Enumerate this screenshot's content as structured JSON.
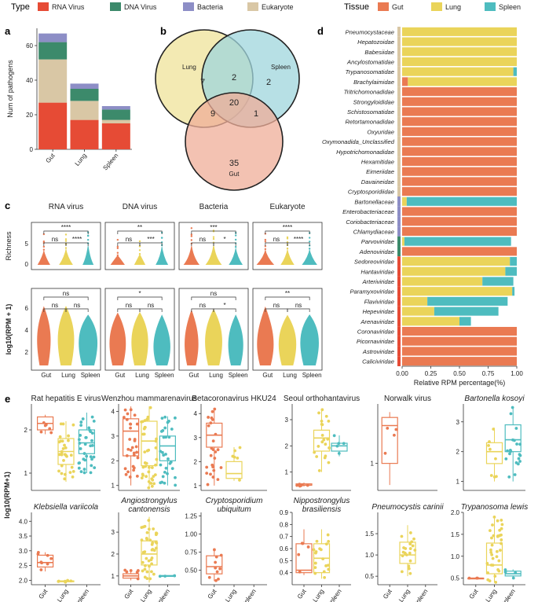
{
  "colors": {
    "rna": "#e64b35",
    "dna": "#3c8a6b",
    "bacteria": "#8d8ec6",
    "eukaryote": "#d9c7a5",
    "gut": "#ea7a52",
    "lung": "#ead45a",
    "spleen": "#4ebcbf",
    "venn_lung": "#efe39a",
    "venn_spleen": "#9fd5dc",
    "venn_gut": "#efad98"
  },
  "legend": {
    "type_title": "Type",
    "type_items": [
      {
        "key": "rna",
        "label": "RNA Virus"
      },
      {
        "key": "dna",
        "label": "DNA Virus"
      },
      {
        "key": "bacteria",
        "label": "Bacteria"
      },
      {
        "key": "eukaryote",
        "label": "Eukaryote"
      }
    ],
    "tissue_title": "Tissue",
    "tissue_items": [
      {
        "key": "gut",
        "label": "Gut"
      },
      {
        "key": "lung",
        "label": "Lung"
      },
      {
        "key": "spleen",
        "label": "Spleen"
      }
    ]
  },
  "panel_labels": {
    "a": "a",
    "b": "b",
    "c": "c",
    "d": "d",
    "e": "e"
  },
  "chart_data": [
    {
      "id": "panel-a",
      "type": "bar",
      "stacked": true,
      "categories": [
        "Gut",
        "Lung",
        "Spleen"
      ],
      "series": [
        {
          "name": "RNA Virus",
          "key": "rna",
          "values": [
            27,
            17,
            15
          ]
        },
        {
          "name": "Eukaryote",
          "key": "eukaryote",
          "values": [
            25,
            11,
            2
          ]
        },
        {
          "name": "DNA Virus",
          "key": "dna",
          "values": [
            10,
            7,
            6
          ]
        },
        {
          "name": "Bacteria",
          "key": "bacteria",
          "values": [
            5,
            3,
            2
          ]
        }
      ],
      "ylabel": "Num of pathogens",
      "ylim": [
        0,
        70
      ],
      "yticks": [
        0,
        20,
        40,
        60
      ]
    },
    {
      "id": "panel-b",
      "type": "venn",
      "sets": [
        "Lung",
        "Spleen",
        "Gut"
      ],
      "regions": {
        "lung_only": "7",
        "spleen_only": "2",
        "gut_only": "35",
        "lung_spleen": "2",
        "lung_gut": "9",
        "spleen_gut": "1",
        "all": "20"
      }
    },
    {
      "id": "panel-c",
      "type": "violin",
      "groups": [
        "Gut",
        "Lung",
        "Spleen"
      ],
      "row_labels": [
        "Richness",
        "log10(RPM + 1)"
      ],
      "panels": [
        {
          "title": "RNA virus",
          "row": 0,
          "sig": [
            "ns",
            "****",
            "ns",
            "ns",
            "****"
          ]
        },
        {
          "title": "DNA virus",
          "row": 0,
          "sig": [
            "ns",
            "**",
            "ns",
            "ns",
            "***"
          ]
        },
        {
          "title": "Bacteria",
          "row": 0,
          "sig": [
            "ns",
            "***",
            "ns",
            "ns",
            "*"
          ]
        },
        {
          "title": "Eukaryote",
          "row": 0,
          "sig": [
            "ns",
            "****",
            "ns",
            "ns",
            "****"
          ]
        },
        {
          "title": "",
          "row": 1,
          "sig": [
            "ns",
            "ns",
            "ns",
            "ns",
            "ns"
          ]
        },
        {
          "title": "",
          "row": 1,
          "sig": [
            "ns",
            "*",
            "ns",
            "ns",
            "ns"
          ]
        },
        {
          "title": "",
          "row": 1,
          "sig": [
            "ns",
            "ns",
            "ns",
            "ns",
            "*"
          ]
        },
        {
          "title": "",
          "row": 1,
          "sig": [
            "ns",
            "**",
            "ns",
            "ns",
            "ns"
          ]
        }
      ]
    },
    {
      "id": "panel-d",
      "type": "bar",
      "stacked": true,
      "orientation": "horizontal",
      "xlabel": "Relative RPM percentage(%)",
      "xticks": [
        "0.00",
        "0.25",
        "0.50",
        "0.75",
        "1.00"
      ],
      "categories": [
        "Pneumocystaceae",
        "Hepatozoidae",
        "Babesiidae",
        "Ancylostomatidae",
        "Trypanosomatidae",
        "Brachylaimidae",
        "Tritrichomonadidae",
        "Strongyloididae",
        "Schistosomatidae",
        "Retortamonadidae",
        "Oxyuridae",
        "Oxymonadida_Unclassified",
        "Hypotrichomonadidae",
        "Hexamitidae",
        "Eimeriidae",
        "Davaineidae",
        "Cryptosporidiidae",
        "Bartonellaceae",
        "Enterobacteriaceae",
        "Coriobacteriaceae",
        "Chlamydiaceae",
        "Parvoviridae",
        "Adenoviridae",
        "Sedoreoviridae",
        "Hantaviridae",
        "Arteriviridae",
        "Paramyxoviridae",
        "Flaviviridae",
        "Hepeviridae",
        "Arenaviridae",
        "Coronaviridae",
        "Picornaviridae",
        "Astroviridae",
        "Caliciviridae"
      ],
      "series": [
        {
          "name": "Gut",
          "key": "gut",
          "values": [
            0,
            0,
            0,
            0,
            0,
            0.05,
            1,
            1,
            1,
            1,
            1,
            1,
            1,
            1,
            1,
            1,
            1,
            0,
            1,
            1,
            1,
            0,
            1,
            0,
            0,
            0,
            0,
            0,
            0,
            0,
            1,
            1,
            1,
            1
          ]
        },
        {
          "name": "Lung",
          "key": "lung",
          "values": [
            1,
            1,
            1,
            1,
            0.97,
            0.95,
            0,
            0,
            0,
            0,
            0,
            0,
            0,
            0,
            0,
            0,
            0,
            0.04,
            0,
            0,
            0,
            0.02,
            0,
            0.94,
            0.9,
            0.7,
            0.96,
            0.22,
            0.28,
            0.5,
            0,
            0,
            0,
            0
          ]
        },
        {
          "name": "Spleen",
          "key": "spleen",
          "values": [
            0,
            0,
            0,
            0,
            0.03,
            0,
            0,
            0,
            0,
            0,
            0,
            0,
            0,
            0,
            0,
            0,
            0,
            0.96,
            0,
            0,
            0,
            0.93,
            0,
            0.06,
            0.1,
            0.27,
            0.02,
            0.7,
            0.56,
            0.1,
            0,
            0,
            0,
            0
          ]
        }
      ],
      "left_strip": [
        "eukaryote",
        "eukaryote",
        "eukaryote",
        "eukaryote",
        "eukaryote",
        "eukaryote",
        "eukaryote",
        "eukaryote",
        "eukaryote",
        "eukaryote",
        "eukaryote",
        "eukaryote",
        "eukaryote",
        "eukaryote",
        "eukaryote",
        "eukaryote",
        "eukaryote",
        "bacteria",
        "bacteria",
        "bacteria",
        "bacteria",
        "dna",
        "dna",
        "rna",
        "rna",
        "rna",
        "rna",
        "rna",
        "rna",
        "rna",
        "rna",
        "rna",
        "rna",
        "rna"
      ]
    },
    {
      "id": "panel-e",
      "type": "box",
      "ylabel": "log10(RPM+1)",
      "groups": [
        "Gut",
        "Lung",
        "Spleen"
      ],
      "panels": [
        {
          "title": "Rat hepatitis E virus",
          "italic": false,
          "ylim": [
            0.6,
            2.6
          ],
          "ticks": [
            "1",
            "2"
          ],
          "tickvals": [
            1,
            2
          ],
          "boxes": [
            {
              "g": 0,
              "q1": 2.0,
              "med": 2.15,
              "q3": 2.3,
              "lo": 1.9,
              "hi": 2.35,
              "n": 6
            },
            {
              "g": 1,
              "q1": 1.2,
              "med": 1.5,
              "q3": 1.8,
              "lo": 0.8,
              "hi": 2.2,
              "n": 30
            },
            {
              "g": 2,
              "q1": 1.45,
              "med": 1.7,
              "q3": 2.0,
              "lo": 1.0,
              "hi": 2.4,
              "n": 35
            }
          ]
        },
        {
          "title": "Wenzhou mammarenavirus",
          "italic": false,
          "ylim": [
            0.8,
            4.3
          ],
          "ticks": [
            "1",
            "2",
            "3",
            "4"
          ],
          "tickvals": [
            1,
            2,
            3,
            4
          ],
          "boxes": [
            {
              "g": 0,
              "q1": 2.2,
              "med": 3.2,
              "q3": 3.7,
              "lo": 1.0,
              "hi": 4.2,
              "n": 30
            },
            {
              "g": 1,
              "q1": 1.8,
              "med": 2.8,
              "q3": 3.6,
              "lo": 0.9,
              "hi": 4.2,
              "n": 40
            },
            {
              "g": 2,
              "q1": 2.0,
              "med": 2.6,
              "q3": 3.0,
              "lo": 1.0,
              "hi": 3.8,
              "n": 30
            }
          ]
        },
        {
          "title": "Betacoronavirus HKU24",
          "italic": false,
          "ylim": [
            0.8,
            4.4
          ],
          "ticks": [
            "1",
            "2",
            "3",
            "4"
          ],
          "tickvals": [
            1,
            2,
            3,
            4
          ],
          "boxes": [
            {
              "g": 0,
              "q1": 2.6,
              "med": 3.1,
              "q3": 3.6,
              "lo": 1.0,
              "hi": 4.2,
              "n": 25
            },
            {
              "g": 1,
              "q1": 1.3,
              "med": 1.5,
              "q3": 2.0,
              "lo": 1.2,
              "hi": 2.6,
              "n": 6
            }
          ]
        },
        {
          "title": "Seoul orthohantavirus",
          "italic": false,
          "ylim": [
            0.3,
            3.6
          ],
          "ticks": [
            "1",
            "2",
            "3"
          ],
          "tickvals": [
            1,
            2,
            3
          ],
          "boxes": [
            {
              "g": 0,
              "q1": 0.5,
              "med": 0.5,
              "q3": 0.55,
              "lo": 0.45,
              "hi": 0.6,
              "n": 6
            },
            {
              "g": 1,
              "q1": 1.8,
              "med": 2.3,
              "q3": 2.6,
              "lo": 1.0,
              "hi": 3.4,
              "n": 20
            },
            {
              "g": 2,
              "q1": 1.8,
              "med": 2.0,
              "q3": 2.1,
              "lo": 1.6,
              "hi": 2.4,
              "n": 5
            }
          ]
        },
        {
          "title": "Norwalk virus",
          "italic": false,
          "ylim": [
            0.5,
            2.1
          ],
          "ticks": [
            "1"
          ],
          "tickvals": [
            1
          ],
          "boxes": [
            {
              "g": 0,
              "q1": 1.0,
              "med": 1.7,
              "q3": 1.85,
              "lo": 0.6,
              "hi": 1.95,
              "n": 4
            }
          ]
        },
        {
          "title": "Bartonella kosoyi",
          "italic": true,
          "ylim": [
            0.7,
            3.6
          ],
          "ticks": [
            "1",
            "2",
            "3"
          ],
          "tickvals": [
            1,
            2,
            3
          ],
          "boxes": [
            {
              "g": 1,
              "q1": 1.6,
              "med": 2.0,
              "q3": 2.3,
              "lo": 1.0,
              "hi": 2.8,
              "n": 8
            },
            {
              "g": 2,
              "q1": 2.0,
              "med": 2.4,
              "q3": 2.9,
              "lo": 1.0,
              "hi": 3.5,
              "n": 20
            }
          ]
        },
        {
          "title": "Klebsiella variicola",
          "italic": true,
          "ylim": [
            1.85,
            4.3
          ],
          "ticks": [
            "2.0",
            "2.5",
            "3.0",
            "3.5",
            "4.0"
          ],
          "tickvals": [
            2.0,
            2.5,
            3.0,
            3.5,
            4.0
          ],
          "boxes": [
            {
              "g": 0,
              "q1": 2.45,
              "med": 2.6,
              "q3": 2.85,
              "lo": 2.3,
              "hi": 2.95,
              "n": 8
            },
            {
              "g": 1,
              "q1": 1.95,
              "med": 1.97,
              "q3": 1.98,
              "lo": 1.93,
              "hi": 2.0,
              "n": 6
            }
          ]
        },
        {
          "title": "Angiostrongylus cantonensis",
          "italic": true,
          "ylim": [
            0.6,
            3.9
          ],
          "ticks": [
            "1",
            "2",
            "3"
          ],
          "tickvals": [
            1,
            2,
            3
          ],
          "boxes": [
            {
              "g": 0,
              "q1": 0.9,
              "med": 1.0,
              "q3": 1.1,
              "lo": 0.8,
              "hi": 1.3,
              "n": 6
            },
            {
              "g": 1,
              "q1": 1.5,
              "med": 2.0,
              "q3": 2.6,
              "lo": 0.7,
              "hi": 3.7,
              "n": 40
            },
            {
              "g": 2,
              "q1": 0.98,
              "med": 1.0,
              "q3": 1.02,
              "lo": 0.97,
              "hi": 1.03,
              "n": 3
            }
          ]
        },
        {
          "title": "Cryptosporidium ubiquitum",
          "italic": true,
          "ylim": [
            0.3,
            1.3
          ],
          "ticks": [
            "0.50",
            "0.75",
            "1.00",
            "1.25"
          ],
          "tickvals": [
            0.5,
            0.75,
            1.0,
            1.25
          ],
          "boxes": [
            {
              "g": 0,
              "q1": 0.45,
              "med": 0.55,
              "q3": 0.7,
              "lo": 0.35,
              "hi": 0.8,
              "n": 10
            }
          ]
        },
        {
          "title": "Nippostrongylus brasiliensis",
          "italic": true,
          "ylim": [
            0.3,
            0.9
          ],
          "ticks": [
            "0.4",
            "0.5",
            "0.6",
            "0.7",
            "0.8",
            "0.9"
          ],
          "tickvals": [
            0.4,
            0.5,
            0.6,
            0.7,
            0.8,
            0.9
          ],
          "boxes": [
            {
              "g": 0,
              "q1": 0.4,
              "med": 0.42,
              "q3": 0.64,
              "lo": 0.38,
              "hi": 0.76,
              "n": 5
            },
            {
              "g": 1,
              "q1": 0.4,
              "med": 0.52,
              "q3": 0.64,
              "lo": 0.35,
              "hi": 0.76,
              "n": 18
            }
          ]
        },
        {
          "title": "Pneumocystis carinii",
          "italic": true,
          "ylim": [
            0.3,
            2.0
          ],
          "ticks": [
            "0.5",
            "1.0",
            "1.5"
          ],
          "tickvals": [
            0.5,
            1.0,
            1.5
          ],
          "boxes": [
            {
              "g": 1,
              "q1": 0.8,
              "med": 1.0,
              "q3": 1.3,
              "lo": 0.5,
              "hi": 1.7,
              "n": 20
            }
          ]
        },
        {
          "title": "Trypanosoma lewis",
          "italic": true,
          "ylim": [
            0.35,
            2.0
          ],
          "ticks": [
            "0.5",
            "1.0",
            "1.5",
            "2.0"
          ],
          "tickvals": [
            0.5,
            1.0,
            1.5,
            2.0
          ],
          "boxes": [
            {
              "g": 0,
              "q1": 0.5,
              "med": 0.5,
              "q3": 0.5,
              "lo": 0.5,
              "hi": 0.5,
              "n": 3
            },
            {
              "g": 1,
              "q1": 0.6,
              "med": 0.8,
              "q3": 1.3,
              "lo": 0.4,
              "hi": 1.9,
              "n": 35
            },
            {
              "g": 2,
              "q1": 0.55,
              "med": 0.6,
              "q3": 0.66,
              "lo": 0.5,
              "hi": 0.7,
              "n": 4
            }
          ]
        }
      ]
    }
  ]
}
